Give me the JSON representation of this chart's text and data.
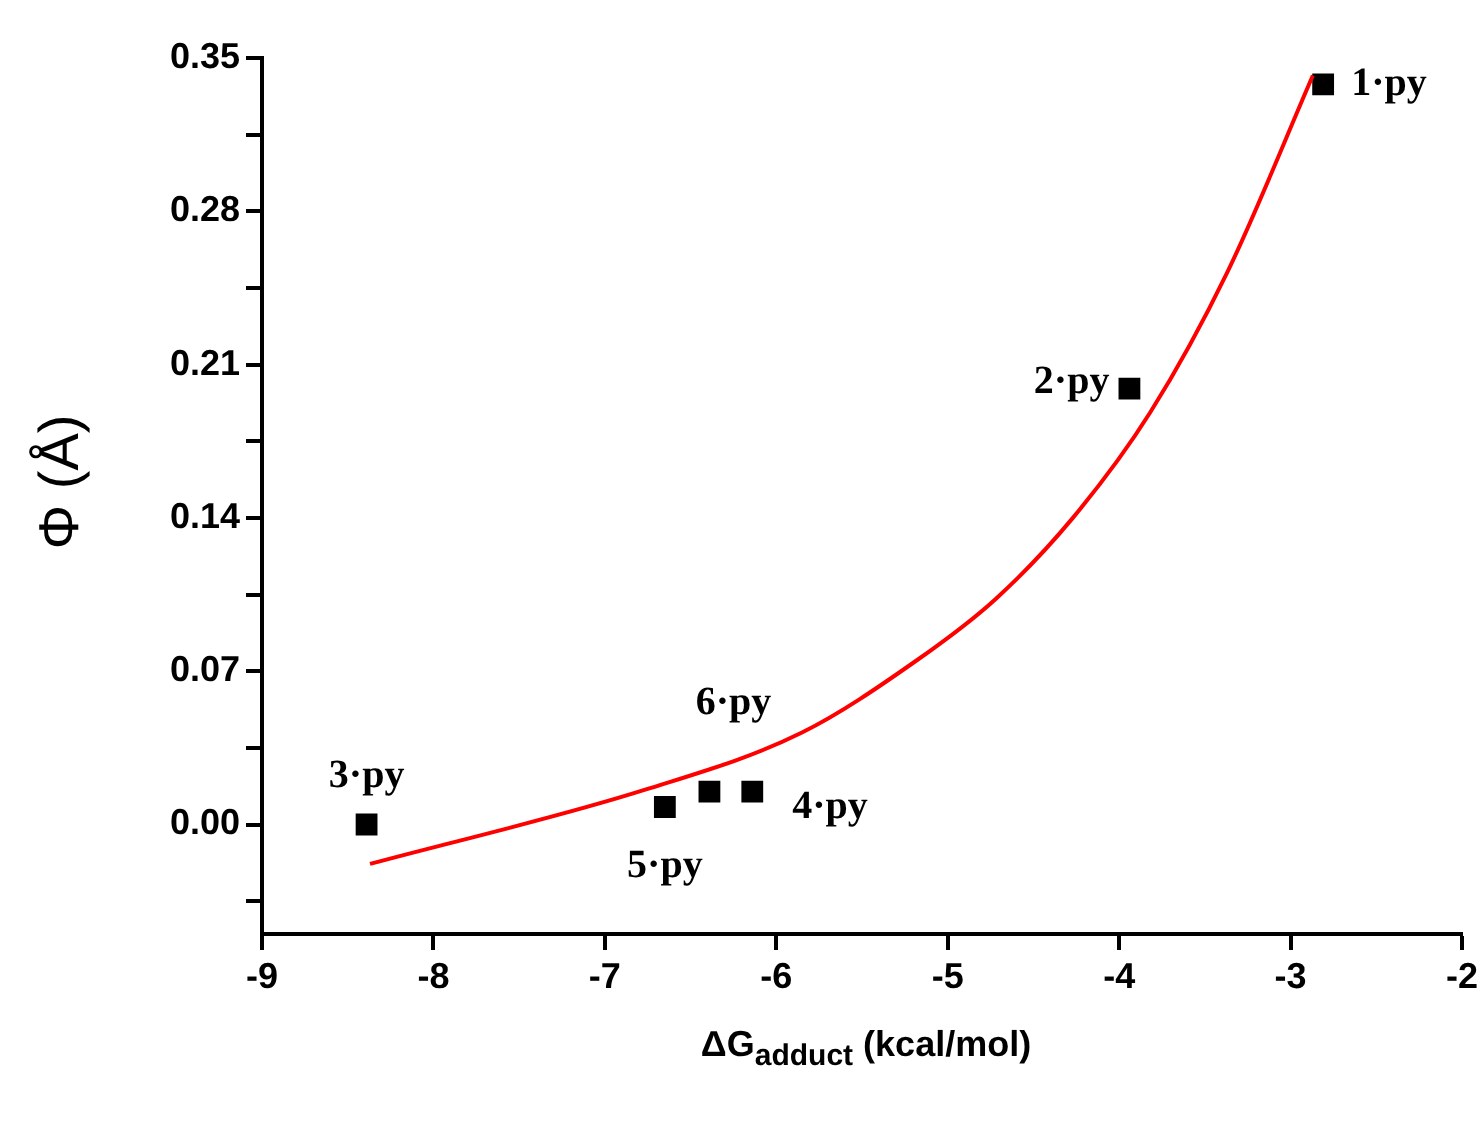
{
  "chart_data": {
    "type": "scatter",
    "xlabel": "ΔG$_{adduct}$ (kcal/mol)",
    "ylabel": "Φ (Å)",
    "xlim": [
      -9,
      -2
    ],
    "xticks": [
      -9,
      -8,
      -7,
      -6,
      -5,
      -4,
      -3,
      -2
    ],
    "ylim": [
      -0.05,
      0.35
    ],
    "yticks": [
      {
        "value": -0.035,
        "label": null
      },
      {
        "value": 0,
        "label": "0.00"
      },
      {
        "value": 0.035,
        "label": null
      },
      0.07,
      {
        "value": 0.105,
        "label": null
      },
      0.14,
      {
        "value": 0.175,
        "label": null
      },
      0.21,
      {
        "value": 0.245,
        "label": null
      },
      0.28,
      {
        "value": 0.315,
        "label": null
      },
      0.35
    ],
    "grid": false,
    "legend": false,
    "marker": "square",
    "series": [
      {
        "color": "#000000",
        "x": [
          -2.81,
          -3.94,
          -8.39,
          -6.14,
          -6.65,
          -6.39
        ],
        "values": [
          0.338,
          0.199,
          0.0,
          0.015,
          0.008,
          0.015
        ]
      },
      {
        "type": "line",
        "color": "#ff0000",
        "marker": "none",
        "line_style": "solid",
        "x": [
          -8.37,
          -6.76,
          -5.85,
          -5.18,
          -4.72,
          -4.27,
          -3.82,
          -3.37,
          -2.87
        ],
        "values": [
          -0.018,
          0.016,
          0.042,
          0.075,
          0.103,
          0.14,
          0.188,
          0.252,
          0.342
        ]
      }
    ],
    "annotations": [
      {
        "text": "1·py",
        "x": -2.81,
        "y": 0.338
      },
      {
        "text": "2·py",
        "x": -3.94,
        "y": 0.199
      },
      {
        "text": "3·py",
        "x": -8.39,
        "y": 0.0
      },
      {
        "text": "4·py",
        "x": -6.14,
        "y": 0.015
      },
      {
        "text": "5·py",
        "x": -6.65,
        "y": 0.008
      },
      {
        "text": "6·py",
        "x": -6.39,
        "y": 0.015
      }
    ]
  }
}
